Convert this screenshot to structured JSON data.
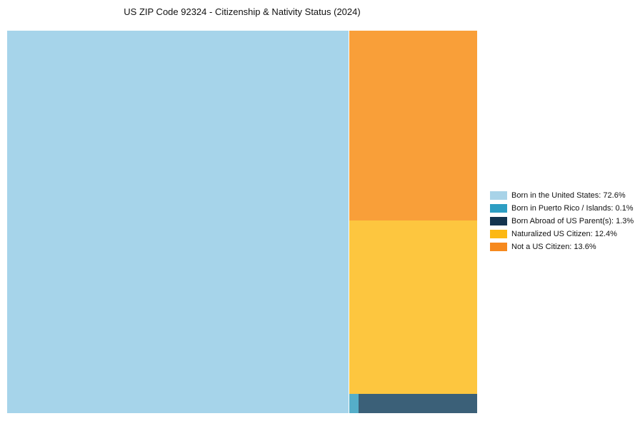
{
  "header": {
    "title": "US ZIP Code 92324 - Citizenship & Nativity Status (2024)"
  },
  "chart_data": {
    "type": "treemap",
    "title": "US ZIP Code 92324 - Citizenship & Nativity Status (2024)",
    "unit": "%",
    "legend_position": "right",
    "grid": false,
    "segments": [
      {
        "label": "Born in the United States",
        "value": 72.6,
        "legend_text": "Born in the United States: 72.6%",
        "block_color": "#A6D4EA",
        "legend_color": "#A8D3E8"
      },
      {
        "label": "Born in Puerto Rico / Islands",
        "value": 0.1,
        "legend_text": "Born in Puerto Rico / Islands: 0.1%",
        "block_color": "#55AEC9",
        "legend_color": "#2D9EC3"
      },
      {
        "label": "Born Abroad of US Parent(s)",
        "value": 1.3,
        "legend_text": "Born Abroad of US Parent(s): 1.3%",
        "block_color": "#3B6078",
        "legend_color": "#14344E"
      },
      {
        "label": "Naturalized US Citizen",
        "value": 12.4,
        "legend_text": "Naturalized US Citizen: 12.4%",
        "block_color": "#FDC63F",
        "legend_color": "#FCB814"
      },
      {
        "label": "Not a US Citizen",
        "value": 13.6,
        "legend_text": "Not a US Citizen: 13.6%",
        "block_color": "#F99F39",
        "legend_color": "#F6891E"
      }
    ],
    "layout": {
      "left_segment": 0,
      "right_column": [
        4,
        3
      ],
      "bottom_row": [
        1,
        2
      ],
      "column_gap": 1
    }
  }
}
